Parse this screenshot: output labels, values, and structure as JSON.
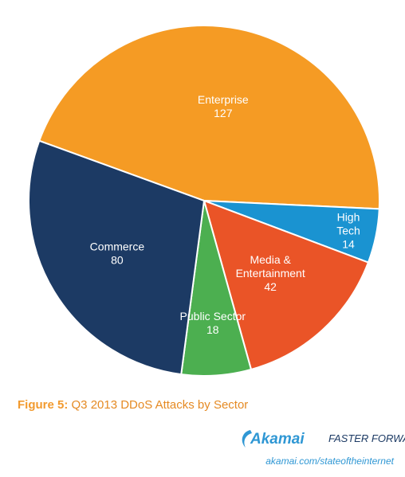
{
  "chart_data": {
    "type": "pie",
    "title": "",
    "categories": [
      "Enterprise",
      "High Tech",
      "Media & Entertainment",
      "Public Sector",
      "Commerce"
    ],
    "values": [
      127,
      14,
      42,
      18,
      80
    ],
    "labels": [
      [
        "Enterprise",
        "127"
      ],
      [
        "High",
        "Tech",
        "14"
      ],
      [
        "Media &",
        "Entertainment",
        "42"
      ],
      [
        "Public Sector",
        "18"
      ],
      [
        "Commerce",
        "80"
      ]
    ],
    "colors": [
      "#f59b24",
      "#1a93d1",
      "#ea5427",
      "#4caf50",
      "#1c3a64"
    ],
    "start": "top-right, clockwise"
  },
  "caption": {
    "prefix": "Figure 5:",
    "title": "Q3 2013 DDoS Attacks by Sector"
  },
  "brand": {
    "logo_text": "Akamai",
    "tagline": "FASTER FORWARD",
    "url": "akamai.com/stateoftheinternet"
  }
}
